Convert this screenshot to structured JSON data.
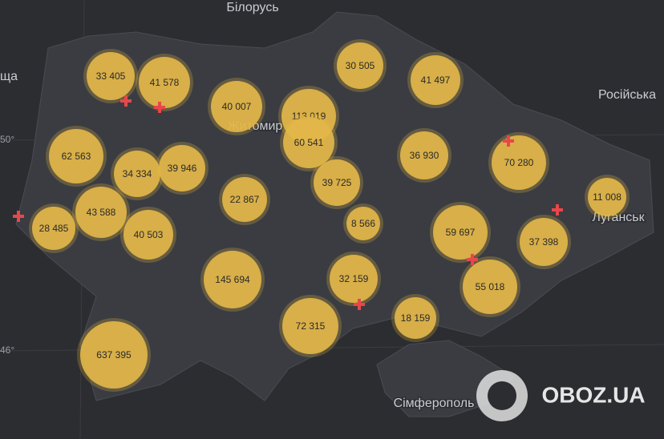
{
  "map_labels": [
    "Білорусь",
    "Росiйська",
    "Житомир",
    "Луганськ",
    "Сімферополь",
    "ща"
  ],
  "latitudes": [
    "50°",
    "46°"
  ],
  "bubbles": [
    {
      "label": "33 405"
    },
    {
      "label": "41 578"
    },
    {
      "label": "40 007"
    },
    {
      "label": "113 019"
    },
    {
      "label": "60 541"
    },
    {
      "label": "30 505"
    },
    {
      "label": "41 497"
    },
    {
      "label": "62 563"
    },
    {
      "label": "34 334"
    },
    {
      "label": "39 946"
    },
    {
      "label": "39 725"
    },
    {
      "label": "36 930"
    },
    {
      "label": "70 280"
    },
    {
      "label": "11 008"
    },
    {
      "label": "22 867"
    },
    {
      "label": "8 566"
    },
    {
      "label": "43 588"
    },
    {
      "label": "28 485"
    },
    {
      "label": "40 503"
    },
    {
      "label": "59 697"
    },
    {
      "label": "37 398"
    },
    {
      "label": "145 694"
    },
    {
      "label": "32 159"
    },
    {
      "label": "55 018"
    },
    {
      "label": "72 315"
    },
    {
      "label": "18 159"
    },
    {
      "label": "637 395"
    }
  ],
  "watermark": "OBOZ.UA"
}
